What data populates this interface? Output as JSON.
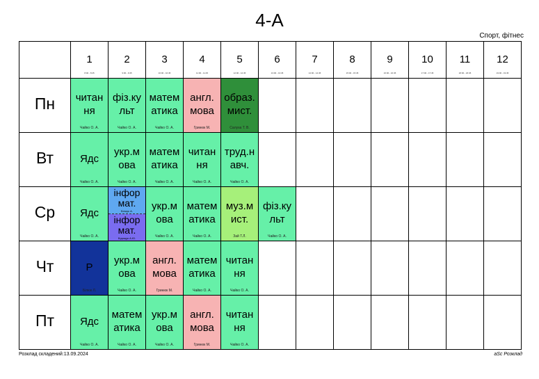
{
  "title": "4-А",
  "subtitle": "Спорт, фітнес",
  "footer_left": "Розклад складений:13.09.2024",
  "footer_right": "aSc Розклад",
  "colors": {
    "green": "#66f0a8",
    "pink": "#f7b3b3",
    "dark_green": "#2f8f3a",
    "blue": "#5fa8f0",
    "purple": "#7a6cf0",
    "navy": "#12339a",
    "light_green": "#a6f07a"
  },
  "periods": [
    {
      "num": "1",
      "time": "8:00 - 8:45"
    },
    {
      "num": "2",
      "time": "9:00 - 9:45"
    },
    {
      "num": "3",
      "time": "10:00 - 10:45"
    },
    {
      "num": "4",
      "time": "11:00 - 11:45"
    },
    {
      "num": "5",
      "time": "12:00 - 12:45"
    },
    {
      "num": "6",
      "time": "13:00 - 13:45"
    },
    {
      "num": "7",
      "time": "14:00 - 14:45"
    },
    {
      "num": "8",
      "time": "15:00 - 15:45"
    },
    {
      "num": "9",
      "time": "16:00 - 16:45"
    },
    {
      "num": "10",
      "time": "17:00 - 17:45"
    },
    {
      "num": "11",
      "time": "18:00 - 18:45"
    },
    {
      "num": "12",
      "time": "19:00 - 19:45"
    }
  ],
  "days": [
    {
      "name": "Пн",
      "lessons": [
        {
          "subject": "читан ня",
          "teacher": "Чайко О. А.",
          "color": "green"
        },
        {
          "subject": "фіз.ку льт",
          "teacher": "Чайко О. А.",
          "color": "green"
        },
        {
          "subject": "матем атика",
          "teacher": "Чайко О. А.",
          "color": "green"
        },
        {
          "subject": "англ. мова",
          "teacher": "Гринюк М.",
          "color": "pink"
        },
        {
          "subject": "образ. мист.",
          "teacher": "Салуха Т. В.",
          "color": "dark_green"
        }
      ]
    },
    {
      "name": "Вт",
      "lessons": [
        {
          "subject": "Ядс",
          "teacher": "Чайко О. А.",
          "color": "green"
        },
        {
          "subject": "укр.м ова",
          "teacher": "Чайко О. А.",
          "color": "green"
        },
        {
          "subject": "матем атика",
          "teacher": "Чайко О. А.",
          "color": "green"
        },
        {
          "subject": "читан ня",
          "teacher": "Чайко О. А.",
          "color": "green"
        },
        {
          "subject": "труд.н авч.",
          "teacher": "Чайко О. А.",
          "color": "green"
        }
      ]
    },
    {
      "name": "Ср",
      "lessons": [
        {
          "subject": "Ядс",
          "teacher": "Чайко О. А.",
          "color": "green"
        },
        {
          "split": true,
          "top": {
            "subject": "інфор мат.",
            "teacher": "Білоус А.",
            "color": "blue"
          },
          "bottom": {
            "subject": "інфор мат.",
            "teacher": "Бідощук А.Ю.",
            "color": "purple"
          }
        },
        {
          "subject": "укр.м ова",
          "teacher": "Чайко О. А.",
          "color": "green"
        },
        {
          "subject": "матем атика",
          "teacher": "Чайко О. А.",
          "color": "green"
        },
        {
          "subject": "муз.м ист.",
          "teacher": "Зай Т.Л.",
          "color": "light_green"
        },
        {
          "subject": "фіз.ку льт",
          "teacher": "Чайко О. А.",
          "color": "green"
        }
      ]
    },
    {
      "name": "Чт",
      "lessons": [
        {
          "subject": "Р",
          "teacher": "Білюк Л.",
          "color": "navy"
        },
        {
          "subject": "укр.м ова",
          "teacher": "Чайко О. А.",
          "color": "green"
        },
        {
          "subject": "англ. мова",
          "teacher": "Гринюк М.",
          "color": "pink"
        },
        {
          "subject": "матем атика",
          "teacher": "Чайко О. А.",
          "color": "green"
        },
        {
          "subject": "читан ня",
          "teacher": "Чайко О. А.",
          "color": "green"
        }
      ]
    },
    {
      "name": "Пт",
      "lessons": [
        {
          "subject": "Ядс",
          "teacher": "Чайко О. А.",
          "color": "green"
        },
        {
          "subject": "матем атика",
          "teacher": "Чайко О. А.",
          "color": "green"
        },
        {
          "subject": "укр.м ова",
          "teacher": "Чайко О. А.",
          "color": "green"
        },
        {
          "subject": "англ. мова",
          "teacher": "Гринюк М.",
          "color": "pink"
        },
        {
          "subject": "читан ня",
          "teacher": "Чайко О. А.",
          "color": "green"
        }
      ]
    }
  ]
}
